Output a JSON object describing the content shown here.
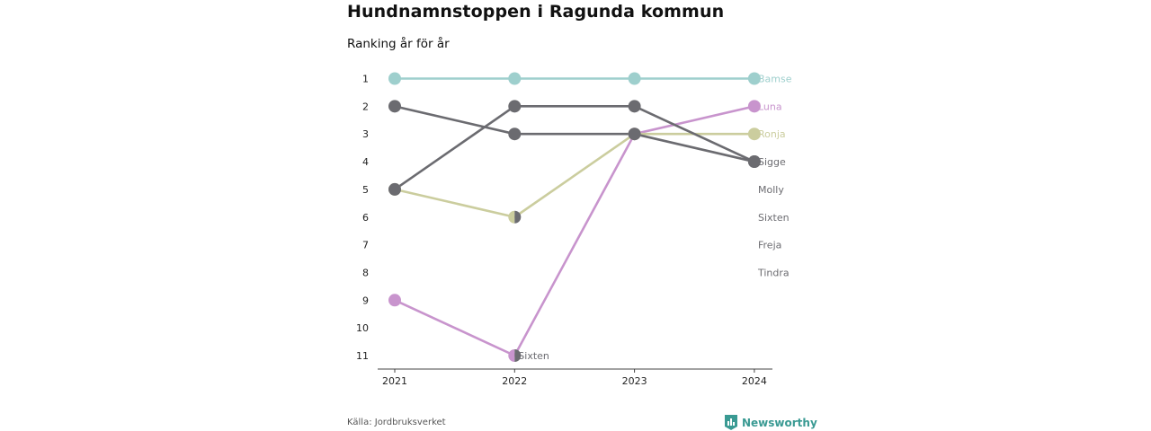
{
  "title": "Hundnamnstoppen i Ragunda kommun",
  "subtitle": "Ranking år för år",
  "source": "Källa: Jordbruksverket",
  "brand": {
    "name": "Newsworthy",
    "icon": "newsworthy-logo-icon",
    "color": "#3a9a93"
  },
  "chart_data": {
    "type": "line",
    "title": "Hundnamnstoppen i Ragunda kommun",
    "subtitle": "Ranking år för år",
    "x": [
      "2021",
      "2022",
      "2023",
      "2024"
    ],
    "y_ticks": [
      1,
      2,
      3,
      4,
      5,
      6,
      7,
      8,
      9,
      10,
      11
    ],
    "ylim": [
      1,
      11
    ],
    "y_reversed": true,
    "grid": false,
    "series": [
      {
        "name": "Bamse",
        "ranks": [
          1,
          1,
          1,
          1
        ],
        "color": "#9ecfcd",
        "end_label": "Bamse"
      },
      {
        "name": "Luna",
        "ranks": [
          9,
          11,
          3,
          2
        ],
        "color": "#c894cd",
        "end_label": "Luna"
      },
      {
        "name": "Ronja",
        "ranks": [
          5,
          6,
          3,
          3
        ],
        "color": "#cbcd9e",
        "end_label": "Ronja"
      },
      {
        "name": "Sigge",
        "ranks": [
          2,
          3,
          3,
          4
        ],
        "color": "#6b6b70",
        "end_label": "Sigge"
      },
      {
        "name": "Molly",
        "ranks": [
          5,
          2,
          2,
          4
        ],
        "color": "#6b6b70",
        "end_label": "Molly"
      },
      {
        "name": "Sixten",
        "ranks": [
          null,
          null,
          null,
          null
        ],
        "color": "#6b6b70",
        "end_label": "Sixten"
      },
      {
        "name": "Freja",
        "ranks": [
          null,
          null,
          null,
          null
        ],
        "color": "#6b6b70",
        "end_label": "Freja"
      },
      {
        "name": "Tindra",
        "ranks": [
          null,
          null,
          null,
          null
        ],
        "color": "#6b6b70",
        "end_label": "Tindra"
      }
    ],
    "inline_labels": [
      {
        "text": "Sixten",
        "x": "2022",
        "rank": 11
      }
    ],
    "half_markers": [
      {
        "x": "2022",
        "rank": 6,
        "left": "#cbcd9e",
        "right": "#6b6b70"
      },
      {
        "x": "2022",
        "rank": 11,
        "left": "#c894cd",
        "right": "#6b6b70"
      }
    ]
  }
}
